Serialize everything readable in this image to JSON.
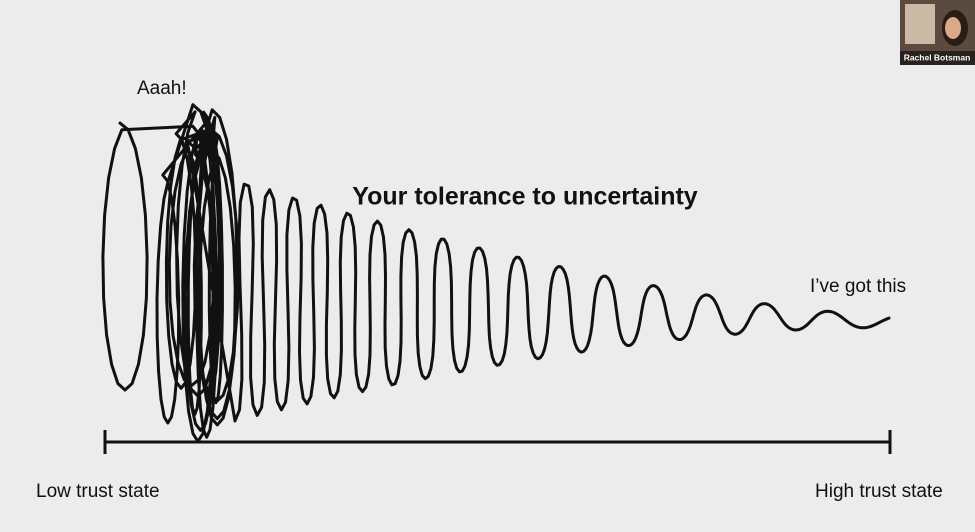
{
  "slide": {
    "title": "Your tolerance to uncertainty",
    "exclamation": "Aaah!",
    "confident_note": "I’ve got this",
    "low_label": "Low trust state",
    "high_label": "High trust state"
  },
  "participant": {
    "name": "Rachel Botsman"
  }
}
